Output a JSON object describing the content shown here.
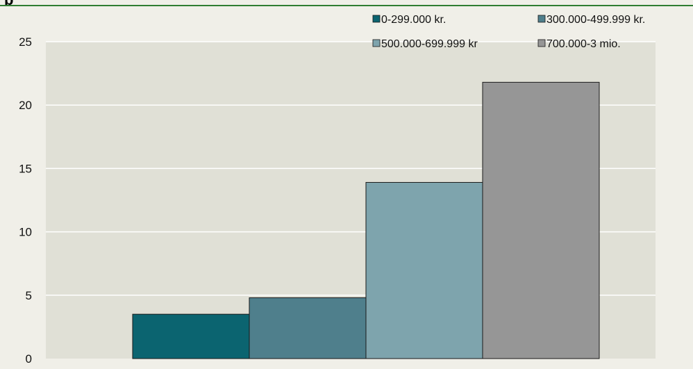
{
  "chart_data": {
    "type": "bar",
    "title": "",
    "title_visible_fragment": "p",
    "xlabel": "",
    "ylabel": "",
    "ylim": [
      0,
      25
    ],
    "yticks": [
      0,
      5,
      10,
      15,
      20,
      25
    ],
    "grid": true,
    "legend_position": "top-right",
    "series": [
      {
        "name": "0-299.000 kr.",
        "value": 3.5,
        "color": "#0b6470"
      },
      {
        "name": "300.000-499.999 kr.",
        "value": 4.8,
        "color": "#4f7f8c"
      },
      {
        "name": "500.000-699.999 kr",
        "value": 13.9,
        "color": "#7ea4ad"
      },
      {
        "name": "700.000-3 mio.",
        "value": 21.8,
        "color": "#969696"
      }
    ]
  },
  "colors": {
    "plot_background": "#e0e0d6",
    "page_background": "#f0efe8",
    "gridline": "#ffffff",
    "rule": "#2f7d32"
  }
}
